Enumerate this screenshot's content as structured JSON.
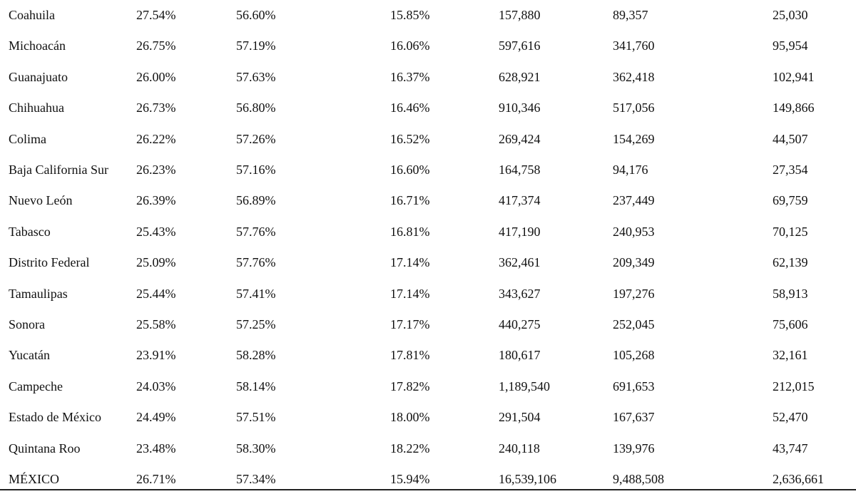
{
  "table": {
    "rows": [
      [
        "Coahuila",
        "27.54%",
        "56.60%",
        "15.85%",
        "157,880",
        "89,357",
        "25,030"
      ],
      [
        "Michoacán",
        "26.75%",
        "57.19%",
        "16.06%",
        "597,616",
        "341,760",
        "95,954"
      ],
      [
        "Guanajuato",
        "26.00%",
        "57.63%",
        "16.37%",
        "628,921",
        "362,418",
        "102,941"
      ],
      [
        "Chihuahua",
        "26.73%",
        "56.80%",
        "16.46%",
        "910,346",
        "517,056",
        "149,866"
      ],
      [
        "Colima",
        "26.22%",
        "57.26%",
        "16.52%",
        "269,424",
        "154,269",
        "44,507"
      ],
      [
        "Baja California Sur",
        "26.23%",
        "57.16%",
        "16.60%",
        "164,758",
        "94,176",
        "27,354"
      ],
      [
        "Nuevo León",
        "26.39%",
        "56.89%",
        "16.71%",
        "417,374",
        "237,449",
        "69,759"
      ],
      [
        "Tabasco",
        "25.43%",
        "57.76%",
        "16.81%",
        "417,190",
        "240,953",
        "70,125"
      ],
      [
        "Distrito Federal",
        "25.09%",
        "57.76%",
        "17.14%",
        "362,461",
        "209,349",
        "62,139"
      ],
      [
        "Tamaulipas",
        "25.44%",
        "57.41%",
        "17.14%",
        "343,627",
        "197,276",
        "58,913"
      ],
      [
        "Sonora",
        "25.58%",
        "57.25%",
        "17.17%",
        "440,275",
        "252,045",
        "75,606"
      ],
      [
        "Yucatán",
        "23.91%",
        "58.28%",
        "17.81%",
        "180,617",
        "105,268",
        "32,161"
      ],
      [
        "Campeche",
        "24.03%",
        "58.14%",
        "17.82%",
        "1,189,540",
        "691,653",
        "212,015"
      ],
      [
        "Estado de México",
        "24.49%",
        "57.51%",
        "18.00%",
        "291,504",
        "167,637",
        "52,470"
      ],
      [
        "Quintana Roo",
        "23.48%",
        "58.30%",
        "18.22%",
        "240,118",
        "139,976",
        "43,747"
      ],
      [
        "MÉXICO",
        "26.71%",
        "57.34%",
        "15.94%",
        "16,539,106",
        "9,488,508",
        "2,636,661"
      ]
    ]
  }
}
